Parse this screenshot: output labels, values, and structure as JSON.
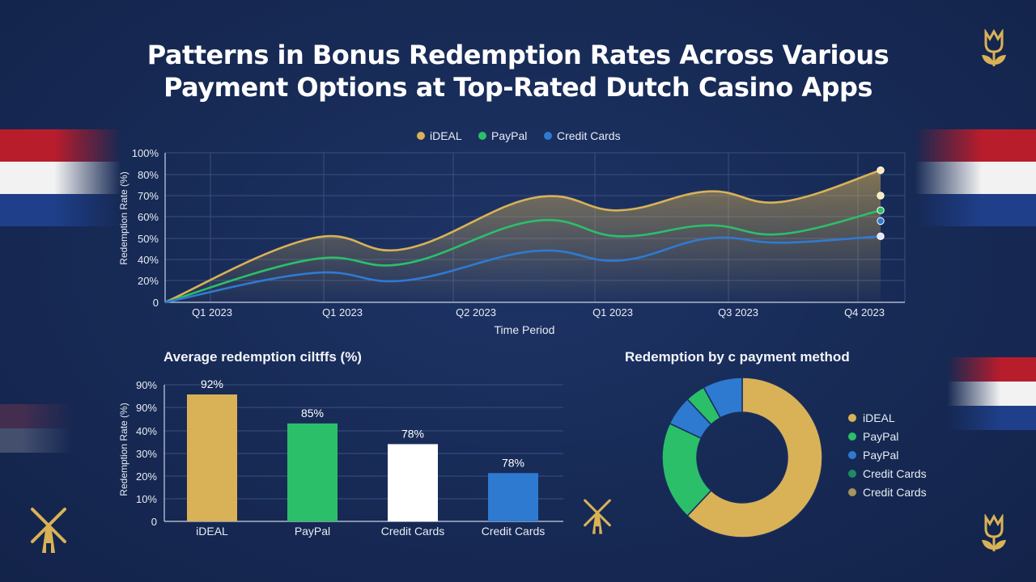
{
  "title_line1": "Patterns in Bonus Redemption Rates Across Various",
  "title_line2": "Payment Options at Top-Rated Dutch Casino Apps",
  "colors": {
    "gold": "#d9b257",
    "green": "#2bbf6a",
    "blue": "#2f7ad1",
    "white": "#ffffff",
    "grid": "#3a4f80",
    "dutch_red": "#b81d2c",
    "dutch_blue": "#1f3f8a"
  },
  "icons": [
    "tulip-icon",
    "windmill-icon"
  ],
  "chart_data": [
    {
      "type": "line",
      "title": "",
      "xlabel": "Time Period",
      "ylabel": "Redemption Rate (%)",
      "y_ticks": [
        "0",
        "20%",
        "40%",
        "50%",
        "60%",
        "70%",
        "80%",
        "100%"
      ],
      "x_tick_labels": [
        "Q1 2023",
        "Q1 2023",
        "Q2 2023",
        "Q1 2023",
        "Q3 2023",
        "Q4 2023"
      ],
      "legend_position": "top-center",
      "grid": true,
      "series": [
        {
          "name": "iDEAL",
          "color": "#d9b257",
          "points": [
            [
              0,
              0
            ],
            [
              1,
              50
            ],
            [
              2,
              45
            ],
            [
              3,
              69
            ],
            [
              4,
              63
            ],
            [
              5,
              72
            ],
            [
              6,
              67
            ],
            [
              7,
              84
            ]
          ]
        },
        {
          "name": "PayPal",
          "color": "#2bbf6a",
          "points": [
            [
              0,
              0
            ],
            [
              1,
              40
            ],
            [
              2,
              36
            ],
            [
              3,
              58
            ],
            [
              4,
              51
            ],
            [
              5,
              56
            ],
            [
              6,
              52
            ],
            [
              7,
              63
            ]
          ]
        },
        {
          "name": "Credit Cards",
          "color": "#2f7ad1",
          "points": [
            [
              0,
              0
            ],
            [
              1,
              27
            ],
            [
              2,
              20
            ],
            [
              3,
              44
            ],
            [
              4,
              39
            ],
            [
              5,
              50
            ],
            [
              6,
              48
            ],
            [
              7,
              51
            ]
          ]
        }
      ],
      "end_markers": [
        84,
        70,
        63,
        58,
        51
      ]
    },
    {
      "type": "bar",
      "title": "Average redemption ciltffs (%)",
      "xlabel": "",
      "ylabel": "Redemption Rate (%)",
      "y_ticks": [
        "0",
        "10%",
        "20%",
        "30%",
        "40%",
        "90%",
        "90%"
      ],
      "categories": [
        "iDEAL",
        "PayPal",
        "Credit Cards",
        "Credit Cards"
      ],
      "values": [
        92,
        85,
        78,
        78
      ],
      "data_labels": [
        "92%",
        "85%",
        "78%",
        "78%"
      ],
      "bar_colors": [
        "#d9b257",
        "#2bbf6a",
        "#ffffff",
        "#2f7ad1"
      ],
      "display_heights_scale": [
        92,
        71,
        56,
        35
      ]
    },
    {
      "type": "pie",
      "title": "Redemption by c payment method",
      "legend_position": "right",
      "slices": [
        {
          "name": "iDEAL",
          "color": "#d9b257",
          "value": 62
        },
        {
          "name": "PayPal",
          "color": "#2bbf6a",
          "value": 20
        },
        {
          "name": "PayPal",
          "color": "#2f7ad1",
          "value": 6
        },
        {
          "name": "Credit Cards",
          "color": "#2bbf6a",
          "value": 4
        },
        {
          "name": "Credit Cards",
          "color": "#2f7ad1",
          "value": 8
        }
      ],
      "legend": [
        {
          "label": "iDEAL",
          "color": "#d9b257"
        },
        {
          "label": "PayPal",
          "color": "#2bbf6a"
        },
        {
          "label": "PayPal",
          "color": "#2f7ad1"
        },
        {
          "label": "Credit Cards",
          "color": "#1f8a62"
        },
        {
          "label": "Credit Cards",
          "color": "#a8945e"
        }
      ]
    }
  ]
}
